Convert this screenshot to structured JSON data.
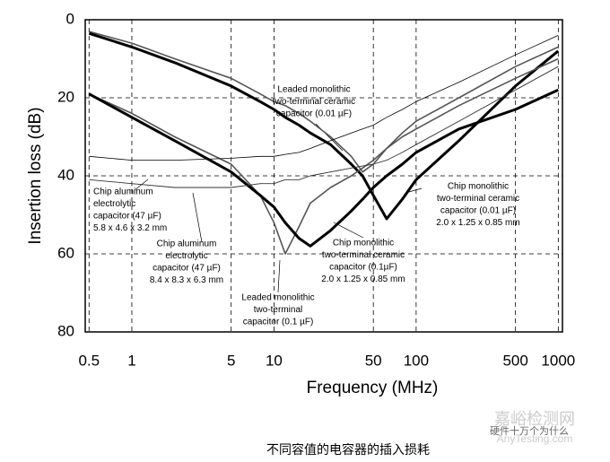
{
  "chart_data": {
    "type": "line",
    "y_label": "Insertion loss (dB)",
    "x_label": "Frequency (MHz)",
    "caption": "不同容值的电容器的插入损耗",
    "watermarks": [
      "嘉峪检测网",
      "AnyTesting.com",
      "硬件十万个为什么"
    ],
    "x": [
      0.5,
      1,
      2,
      5,
      8,
      10,
      12,
      15,
      18,
      25,
      35,
      42,
      50,
      62,
      80,
      100,
      200,
      500,
      1000
    ],
    "xlim": [
      0.47,
      1070
    ],
    "ylim": [
      80,
      0
    ],
    "log_x": true,
    "grid": true,
    "xticks": [
      0.5,
      1,
      5,
      10,
      50,
      100,
      500,
      1000
    ],
    "yticks": [
      0,
      20,
      40,
      60,
      80
    ],
    "series": [
      {
        "color": "#555555",
        "width": 1.6,
        "values": [
          3,
          6,
          10,
          15,
          19,
          21,
          22,
          24,
          26,
          30,
          35,
          39,
          37,
          33,
          29,
          26,
          20,
          12,
          7
        ]
      },
      {
        "color": "#000000",
        "width": 3,
        "values": [
          3.5,
          7,
          11,
          17,
          21,
          23,
          25,
          27,
          29,
          32,
          37,
          40,
          45,
          51,
          46,
          41,
          31,
          17,
          8
        ]
      },
      {
        "color": "#555555",
        "width": 1.6,
        "values": [
          19,
          24,
          30,
          37,
          45,
          52,
          60,
          53,
          47,
          43,
          40,
          38,
          36,
          33,
          30,
          28,
          22,
          15,
          10
        ]
      },
      {
        "color": "#000000",
        "width": 3,
        "values": [
          19,
          25,
          31,
          39,
          45,
          48,
          52,
          56,
          58,
          54,
          49,
          46,
          43,
          40,
          37,
          34,
          28,
          23,
          18
        ]
      },
      {
        "color": "#000000",
        "width": 0.8,
        "values": [
          35,
          36,
          36,
          35.5,
          35,
          35,
          34.5,
          34,
          33,
          31,
          29,
          28,
          27,
          25,
          23,
          21,
          16,
          9,
          4
        ]
      },
      {
        "color": "#333333",
        "width": 0.9,
        "values": [
          41,
          42,
          43,
          43,
          42,
          42,
          41,
          41,
          40,
          39,
          38,
          37.5,
          37,
          36,
          34,
          32,
          26,
          18,
          12
        ]
      }
    ],
    "annotations": [
      [
        "Leaded monolithic",
        "two-terminal ceramic",
        "capacitor (0.01 µF)"
      ],
      [
        "Chip aluminum",
        "electrolytic",
        "capacitor (47 µF)",
        "5.8 x 4.6 x 3.2 mm"
      ],
      [
        "Chip aluminum",
        "electrolytic",
        "capacitor (47 µF)",
        "8.4 x 8.3 x 6.3 mm"
      ],
      [
        "Leaded monolithic",
        "two-terminal",
        "capacitor (0.1 µF)"
      ],
      [
        "Chip monolithic",
        "two-terminal ceramic",
        "capacitor (0.1µF)",
        "2.0 x 1.25 x 0.85 mm"
      ],
      [
        "Chip monolithic",
        "two-terminal ceramic",
        "capacitor (0.01 µF)",
        "2.0 x 1.25 x 0.85 mm"
      ]
    ]
  }
}
